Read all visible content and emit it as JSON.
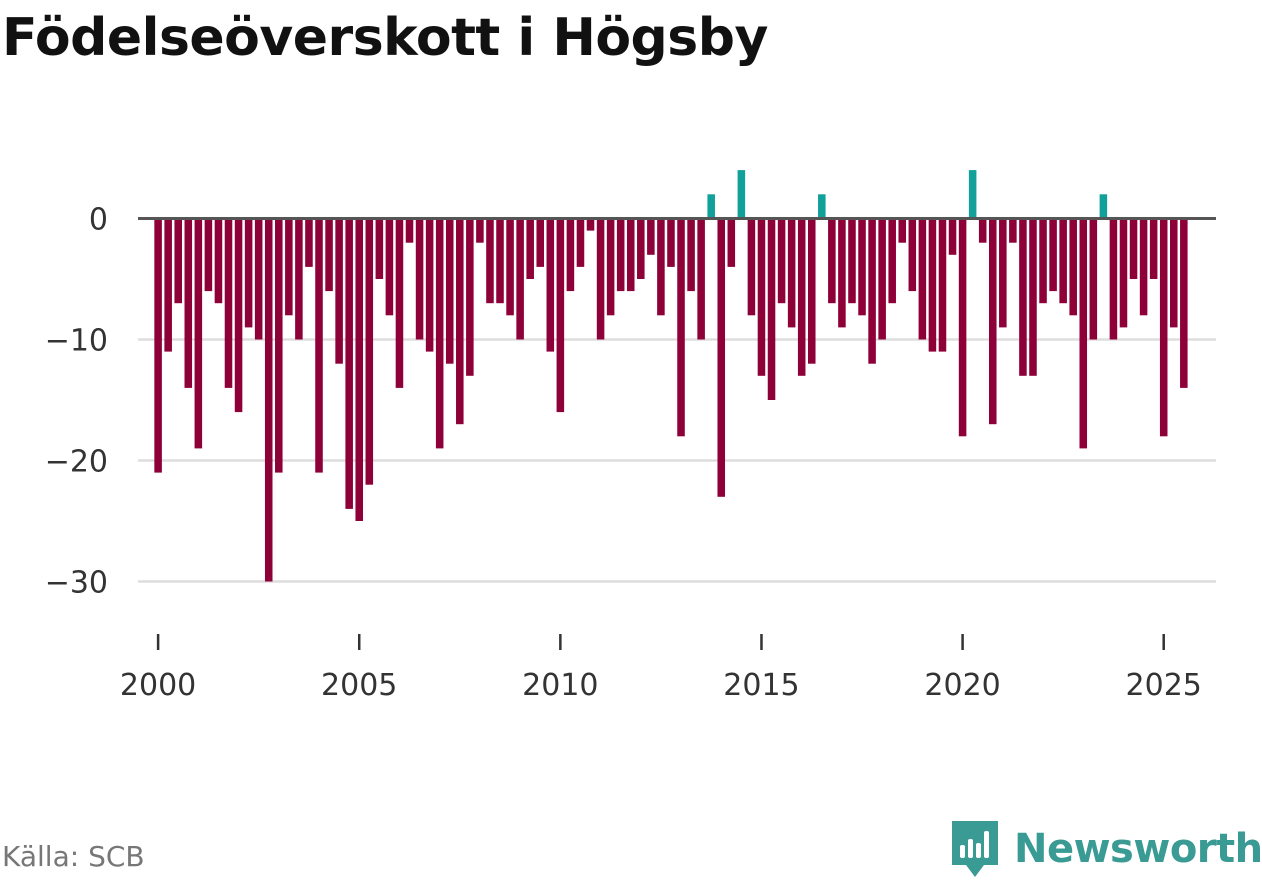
{
  "chart_data": {
    "type": "bar",
    "title": "Födelseöverskott i Högsby",
    "source": "Källa: SCB",
    "brand": "Newsworthy",
    "xlabel": "",
    "ylabel": "",
    "ylim": [
      -35,
      5
    ],
    "xlim": [
      1999.5,
      2026.3
    ],
    "yticks": [
      0,
      -10,
      -20,
      -30
    ],
    "ytick_labels": [
      "0",
      "−10",
      "−20",
      "−30"
    ],
    "xticks": [
      2000,
      2005,
      2010,
      2015,
      2020,
      2025
    ],
    "xtick_labels": [
      "2000",
      "2005",
      "2010",
      "2015",
      "2020",
      "2025"
    ],
    "colors": {
      "negative": "#8e0038",
      "positive": "#12a09a",
      "zero_line": "#555555",
      "grid": "#dddddd"
    },
    "series": [
      {
        "name": "Födelseöverskott",
        "start": 2000,
        "step": 0.25,
        "values": [
          -21,
          -11,
          -7,
          -14,
          -19,
          -6,
          -7,
          -14,
          -16,
          -9,
          -10,
          -30,
          -21,
          -8,
          -10,
          -4,
          -21,
          -6,
          -12,
          -24,
          -25,
          -22,
          -5,
          -8,
          -14,
          -2,
          -10,
          -11,
          -19,
          -12,
          -17,
          -13,
          -2,
          -7,
          -7,
          -8,
          -10,
          -5,
          -4,
          -11,
          -16,
          -6,
          -4,
          -1,
          -10,
          -8,
          -6,
          -6,
          -5,
          -3,
          -8,
          -4,
          -18,
          -6,
          -10,
          2,
          -23,
          -4,
          4,
          -8,
          -13,
          -15,
          -7,
          -9,
          -13,
          -12,
          2,
          -7,
          -9,
          -7,
          -8,
          -12,
          -10,
          -7,
          -2,
          -6,
          -10,
          -11,
          -11,
          -3,
          -18,
          4,
          -2,
          -17,
          -9,
          -2,
          -13,
          -13,
          -7,
          -6,
          -7,
          -8,
          -19,
          -10,
          2,
          -10,
          -9,
          -5,
          -8,
          -5,
          -18,
          -9,
          -14
        ]
      }
    ]
  }
}
